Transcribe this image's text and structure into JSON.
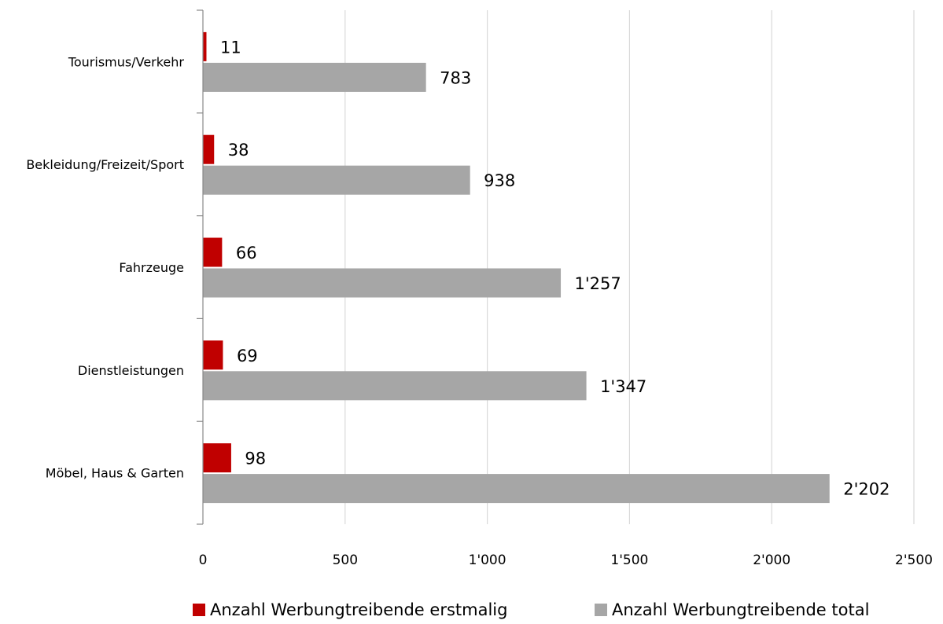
{
  "chart_data": {
    "type": "bar",
    "orientation": "horizontal",
    "categories": [
      "Tourismus/Verkehr",
      "Bekleidung/Freizeit/Sport",
      "Fahrzeuge",
      "Dienstleistungen",
      "Möbel, Haus & Garten"
    ],
    "series": [
      {
        "name": "Anzahl Werbungtreibende erstmalig",
        "values": [
          11,
          38,
          66,
          69,
          98
        ],
        "value_labels": [
          "11",
          "38",
          "66",
          "69",
          "98"
        ],
        "color": "#c00000"
      },
      {
        "name": "Anzahl Werbungtreibende total",
        "values": [
          783,
          938,
          1257,
          1347,
          2202
        ],
        "value_labels": [
          "783",
          "938",
          "1'257",
          "1'347",
          "2'202"
        ],
        "color": "#a6a6a6"
      }
    ],
    "xlim": [
      0,
      2500
    ],
    "xticks": [
      0,
      500,
      1000,
      1500,
      2000,
      2500
    ],
    "xtick_labels": [
      "0",
      "500",
      "1'000",
      "1'500",
      "2'000",
      "2'500"
    ],
    "grid": true,
    "legend_position": "bottom"
  }
}
